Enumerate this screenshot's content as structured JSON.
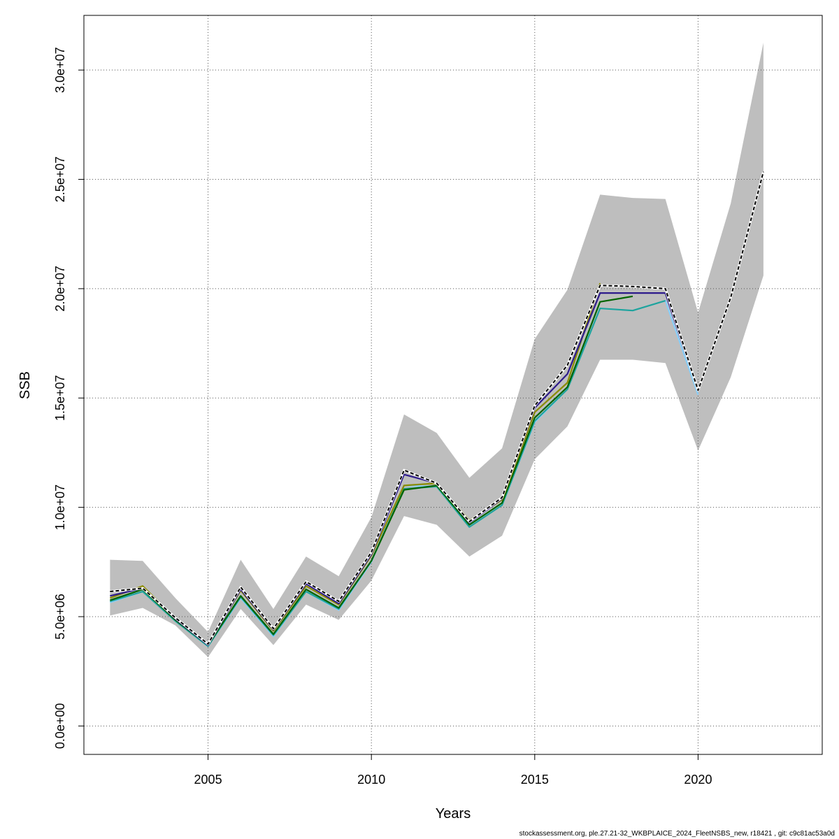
{
  "chart_data": {
    "type": "line",
    "xlabel": "Years",
    "ylabel": "SSB",
    "xlim": [
      2001.2,
      2023.8
    ],
    "ylim": [
      -1300000,
      32500000
    ],
    "x_ticks": [
      2005,
      2010,
      2015,
      2020
    ],
    "x_tick_labels": [
      "2005",
      "2010",
      "2015",
      "2020"
    ],
    "y_ticks": [
      0,
      5000000,
      10000000,
      15000000,
      20000000,
      25000000,
      30000000
    ],
    "y_tick_labels": [
      "0.0e+00",
      "5.0e+06",
      "1.0e+07",
      "1.5e+07",
      "2.0e+07",
      "2.5e+07",
      "3.0e+07"
    ],
    "grid": true,
    "confidence_band": {
      "x": [
        2002,
        2003,
        2004,
        2005,
        2006,
        2007,
        2008,
        2009,
        2010,
        2011,
        2012,
        2013,
        2014,
        2015,
        2016,
        2017,
        2018,
        2019,
        2020,
        2021,
        2022
      ],
      "lower": [
        5050000,
        5400000,
        4600000,
        3150000,
        5350000,
        3700000,
        5550000,
        4850000,
        6650000,
        9600000,
        9200000,
        7750000,
        8700000,
        12200000,
        13700000,
        16750000,
        16750000,
        16600000,
        12600000,
        15950000,
        20600000
      ],
      "upper": [
        7600000,
        7550000,
        5850000,
        4300000,
        7600000,
        5350000,
        7750000,
        6850000,
        9550000,
        14250000,
        13400000,
        11350000,
        12700000,
        17700000,
        19950000,
        24300000,
        24150000,
        24100000,
        18900000,
        23900000,
        31250000
      ]
    },
    "series": [
      {
        "color": "#87cefa",
        "dash": false,
        "x": [
          2002,
          2003,
          2004,
          2005,
          2006,
          2007,
          2008,
          2009,
          2010,
          2011,
          2012,
          2013,
          2014,
          2015,
          2016,
          2017,
          2018,
          2019,
          2020
        ],
        "y": [
          5650000,
          6150000,
          4800000,
          3650000,
          5850000,
          4100000,
          6150000,
          5300000,
          7500000,
          11000000,
          10950000,
          9100000,
          10100000,
          13900000,
          15400000,
          19100000,
          19000000,
          19450000,
          15150000
        ]
      },
      {
        "color": "#20a39b",
        "dash": false,
        "x": [
          2002,
          2003,
          2004,
          2005,
          2006,
          2007,
          2008,
          2009,
          2010,
          2011,
          2012,
          2013,
          2014,
          2015,
          2016,
          2017,
          2018,
          2019
        ],
        "y": [
          5700000,
          6150000,
          4800000,
          3650000,
          5900000,
          4150000,
          6150000,
          5350000,
          7550000,
          10850000,
          10950000,
          9100000,
          10100000,
          13950000,
          15400000,
          19100000,
          19000000,
          19450000
        ]
      },
      {
        "color": "#006400",
        "dash": false,
        "x": [
          2002,
          2003,
          2004,
          2005,
          2006,
          2007,
          2008,
          2009,
          2010,
          2011,
          2012,
          2013,
          2014,
          2015,
          2016,
          2017,
          2018
        ],
        "y": [
          5750000,
          6250000,
          4850000,
          3700000,
          5950000,
          4200000,
          6250000,
          5400000,
          7550000,
          10800000,
          11000000,
          9200000,
          10200000,
          14100000,
          15500000,
          19400000,
          19650000
        ]
      },
      {
        "color": "#8b8b00",
        "dash": false,
        "x": [
          2002,
          2003,
          2004,
          2005,
          2006,
          2007,
          2008,
          2009,
          2010,
          2011,
          2012,
          2013,
          2014,
          2015,
          2016,
          2017
        ],
        "y": [
          5850000,
          6400000,
          4900000,
          3750000,
          6200000,
          4350000,
          6400000,
          5550000,
          7800000,
          11000000,
          11100000,
          9400000,
          10350000,
          14350000,
          15700000,
          20250000
        ]
      },
      {
        "color": "#2e1b8c",
        "dash": false,
        "x": [
          2002,
          2003,
          2004,
          2005,
          2006,
          2007,
          2008,
          2009,
          2010,
          2011,
          2012,
          2013,
          2014,
          2015,
          2016,
          2017,
          2018,
          2019,
          2020,
          2021
        ],
        "y": [
          5950000,
          6300000,
          4900000,
          3700000,
          6250000,
          4400000,
          6500000,
          5600000,
          7850000,
          11500000,
          11100000,
          9300000,
          10400000,
          14550000,
          16100000,
          19800000,
          19800000,
          19800000,
          15350000,
          19600000
        ]
      },
      {
        "color": "#000000",
        "dash": true,
        "x": [
          2002,
          2003,
          2004,
          2005,
          2006,
          2007,
          2008,
          2009,
          2010,
          2011,
          2012,
          2013,
          2014,
          2015,
          2016,
          2017,
          2018,
          2019,
          2020,
          2021,
          2022
        ],
        "y": [
          6150000,
          6300000,
          4950000,
          3750000,
          6350000,
          4450000,
          6600000,
          5700000,
          7950000,
          11700000,
          11100000,
          9350000,
          10450000,
          14650000,
          16500000,
          20150000,
          20100000,
          20000000,
          15350000,
          19600000,
          25350000
        ]
      }
    ]
  },
  "footer_text": "stockassessment.org, ple.27.21-32_WKBPLAICE_2024_FleetNSBS_new, r18421 , git: c9c81ac53a0d"
}
